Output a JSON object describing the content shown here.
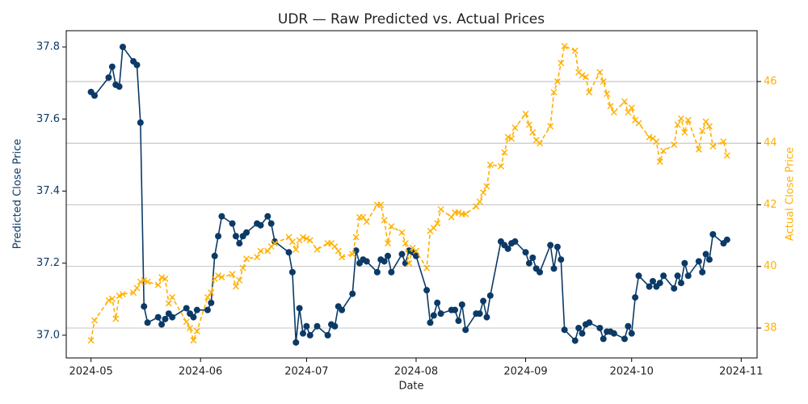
{
  "chart_data": {
    "type": "line",
    "title": "UDR — Raw Predicted vs. Actual Prices",
    "x_label": "Date",
    "y_label": "Predicted Close Price",
    "y2_label": "Actual Close Price",
    "xlim": [
      -7,
      188.5
    ],
    "xticks": [
      {
        "value": 0,
        "label": "2024-05"
      },
      {
        "value": 31,
        "label": "2024-06"
      },
      {
        "value": 61,
        "label": "2024-07"
      },
      {
        "value": 92,
        "label": "2024-08"
      },
      {
        "value": 123,
        "label": "2024-09"
      },
      {
        "value": 153,
        "label": "2024-10"
      },
      {
        "value": 184,
        "label": "2024-11"
      }
    ],
    "ylim": [
      36.937,
      37.845
    ],
    "yticks": [
      {
        "value": 37,
        "label": "37.0"
      },
      37.2,
      37.4,
      37.6,
      37.8
    ],
    "y2lim": [
      37.03,
      47.65
    ],
    "y2ticks": [
      38,
      40,
      42,
      44,
      46
    ],
    "grid": true,
    "x": [
      0,
      1,
      5,
      6,
      7,
      8,
      9,
      12,
      13,
      14,
      15,
      16,
      19,
      20,
      21,
      22,
      23,
      27,
      28,
      29,
      30,
      33,
      34,
      35,
      36,
      37,
      40,
      41,
      42,
      43,
      44,
      47,
      48,
      50,
      51,
      52,
      56,
      57,
      58,
      59,
      60,
      61,
      62,
      64,
      67,
      68,
      69,
      70,
      71,
      74,
      75,
      76,
      77,
      78,
      81,
      82,
      83,
      84,
      85,
      88,
      89,
      90,
      91,
      92,
      95,
      96,
      97,
      98,
      99,
      102,
      103,
      104,
      105,
      106,
      109,
      110,
      111,
      112,
      113,
      116,
      117,
      118,
      119,
      120,
      123,
      124,
      125,
      126,
      127,
      130,
      131,
      132,
      133,
      134,
      137,
      138,
      139,
      140,
      141,
      144,
      145,
      146,
      147,
      148,
      151,
      152,
      153,
      154,
      155,
      158,
      159,
      160,
      161,
      162,
      165,
      166,
      167,
      168,
      169,
      172,
      173,
      174,
      175,
      176,
      179,
      180
    ],
    "series": [
      {
        "name": "Predicted",
        "color": "#0b3a66",
        "axis": "y",
        "values": [
          37.675,
          37.665,
          37.715,
          37.745,
          37.695,
          37.69,
          37.8,
          37.76,
          37.75,
          37.59,
          37.08,
          37.035,
          37.05,
          37.03,
          37.045,
          37.06,
          37.05,
          37.075,
          37.06,
          37.05,
          37.07,
          37.07,
          37.09,
          37.22,
          37.275,
          37.33,
          37.31,
          37.275,
          37.255,
          37.275,
          37.285,
          37.31,
          37.305,
          37.33,
          37.31,
          37.26,
          37.23,
          37.175,
          36.98,
          37.075,
          37.005,
          37.025,
          37.0,
          37.025,
          37.0,
          37.03,
          37.025,
          37.08,
          37.07,
          37.115,
          37.235,
          37.2,
          37.21,
          37.205,
          37.175,
          37.21,
          37.205,
          37.22,
          37.175,
          37.225,
          37.2,
          37.235,
          37.23,
          37.22,
          37.125,
          37.035,
          37.055,
          37.09,
          37.06,
          37.07,
          37.07,
          37.04,
          37.085,
          37.015,
          37.06,
          37.06,
          37.095,
          37.05,
          37.11,
          37.26,
          37.25,
          37.24,
          37.255,
          37.26,
          37.23,
          37.2,
          37.215,
          37.185,
          37.175,
          37.25,
          37.185,
          37.245,
          37.21,
          37.015,
          36.985,
          37.02,
          37.005,
          37.03,
          37.035,
          37.02,
          36.99,
          37.01,
          37.01,
          37.005,
          36.99,
          37.025,
          37.005,
          37.105,
          37.165,
          37.135,
          37.15,
          37.135,
          37.145,
          37.165,
          37.13,
          37.165,
          37.145,
          37.2,
          37.165,
          37.205,
          37.175,
          37.225,
          37.21,
          37.28,
          37.255,
          37.265
        ]
      },
      {
        "name": "Actual",
        "color": "#ffb000",
        "axis": "y2",
        "values": [
          37.6,
          38.25,
          38.9,
          38.95,
          38.3,
          39.05,
          39.1,
          39.15,
          39.3,
          39.5,
          39.55,
          39.5,
          39.4,
          39.65,
          39.6,
          38.8,
          39.0,
          38.2,
          38.0,
          37.6,
          37.9,
          39.0,
          39.15,
          39.6,
          39.7,
          39.65,
          39.75,
          39.35,
          39.55,
          39.95,
          40.25,
          40.3,
          40.5,
          40.5,
          40.65,
          40.75,
          40.95,
          40.8,
          40.55,
          40.85,
          40.95,
          40.9,
          40.85,
          40.55,
          40.75,
          40.75,
          40.65,
          40.5,
          40.3,
          40.4,
          40.95,
          41.6,
          41.6,
          41.45,
          42.0,
          42.0,
          41.5,
          40.75,
          41.3,
          41.1,
          40.75,
          40.1,
          40.6,
          40.5,
          39.95,
          41.15,
          41.25,
          41.4,
          41.85,
          41.6,
          41.75,
          41.75,
          41.7,
          41.7,
          41.95,
          42.1,
          42.4,
          42.6,
          43.3,
          43.25,
          43.7,
          44.2,
          44.15,
          44.5,
          44.95,
          44.6,
          44.35,
          44.1,
          44.0,
          44.55,
          45.65,
          46.0,
          46.6,
          47.15,
          47.0,
          46.3,
          46.2,
          46.15,
          45.65,
          46.3,
          46.0,
          45.6,
          45.2,
          45.0,
          45.35,
          45.0,
          45.15,
          44.75,
          44.65,
          44.2,
          44.15,
          44.05,
          43.4,
          43.75,
          43.95,
          44.6,
          44.8,
          44.35,
          44.75,
          43.8,
          44.4,
          44.7,
          44.55,
          43.9,
          44.05,
          43.6
        ]
      }
    ]
  }
}
